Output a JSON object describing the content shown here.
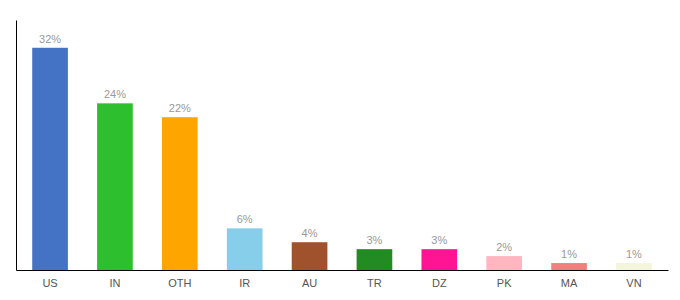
{
  "chart_data": {
    "type": "bar",
    "categories": [
      "US",
      "IN",
      "OTH",
      "IR",
      "AU",
      "TR",
      "DZ",
      "PK",
      "MA",
      "VN"
    ],
    "values": [
      32,
      24,
      22,
      6,
      4,
      3,
      3,
      2,
      1,
      1
    ],
    "value_labels": [
      "32%",
      "24%",
      "22%",
      "6%",
      "4%",
      "3%",
      "3%",
      "2%",
      "1%",
      "1%"
    ],
    "colors": [
      "#4472C4",
      "#2DBF2D",
      "#FFA500",
      "#87CEEB",
      "#A0522D",
      "#228B22",
      "#FF1493",
      "#FFB6C1",
      "#F08080",
      "#F5F5DC"
    ],
    "ylim": [
      0,
      36
    ],
    "data_labels": true,
    "tick_labels": "x"
  }
}
